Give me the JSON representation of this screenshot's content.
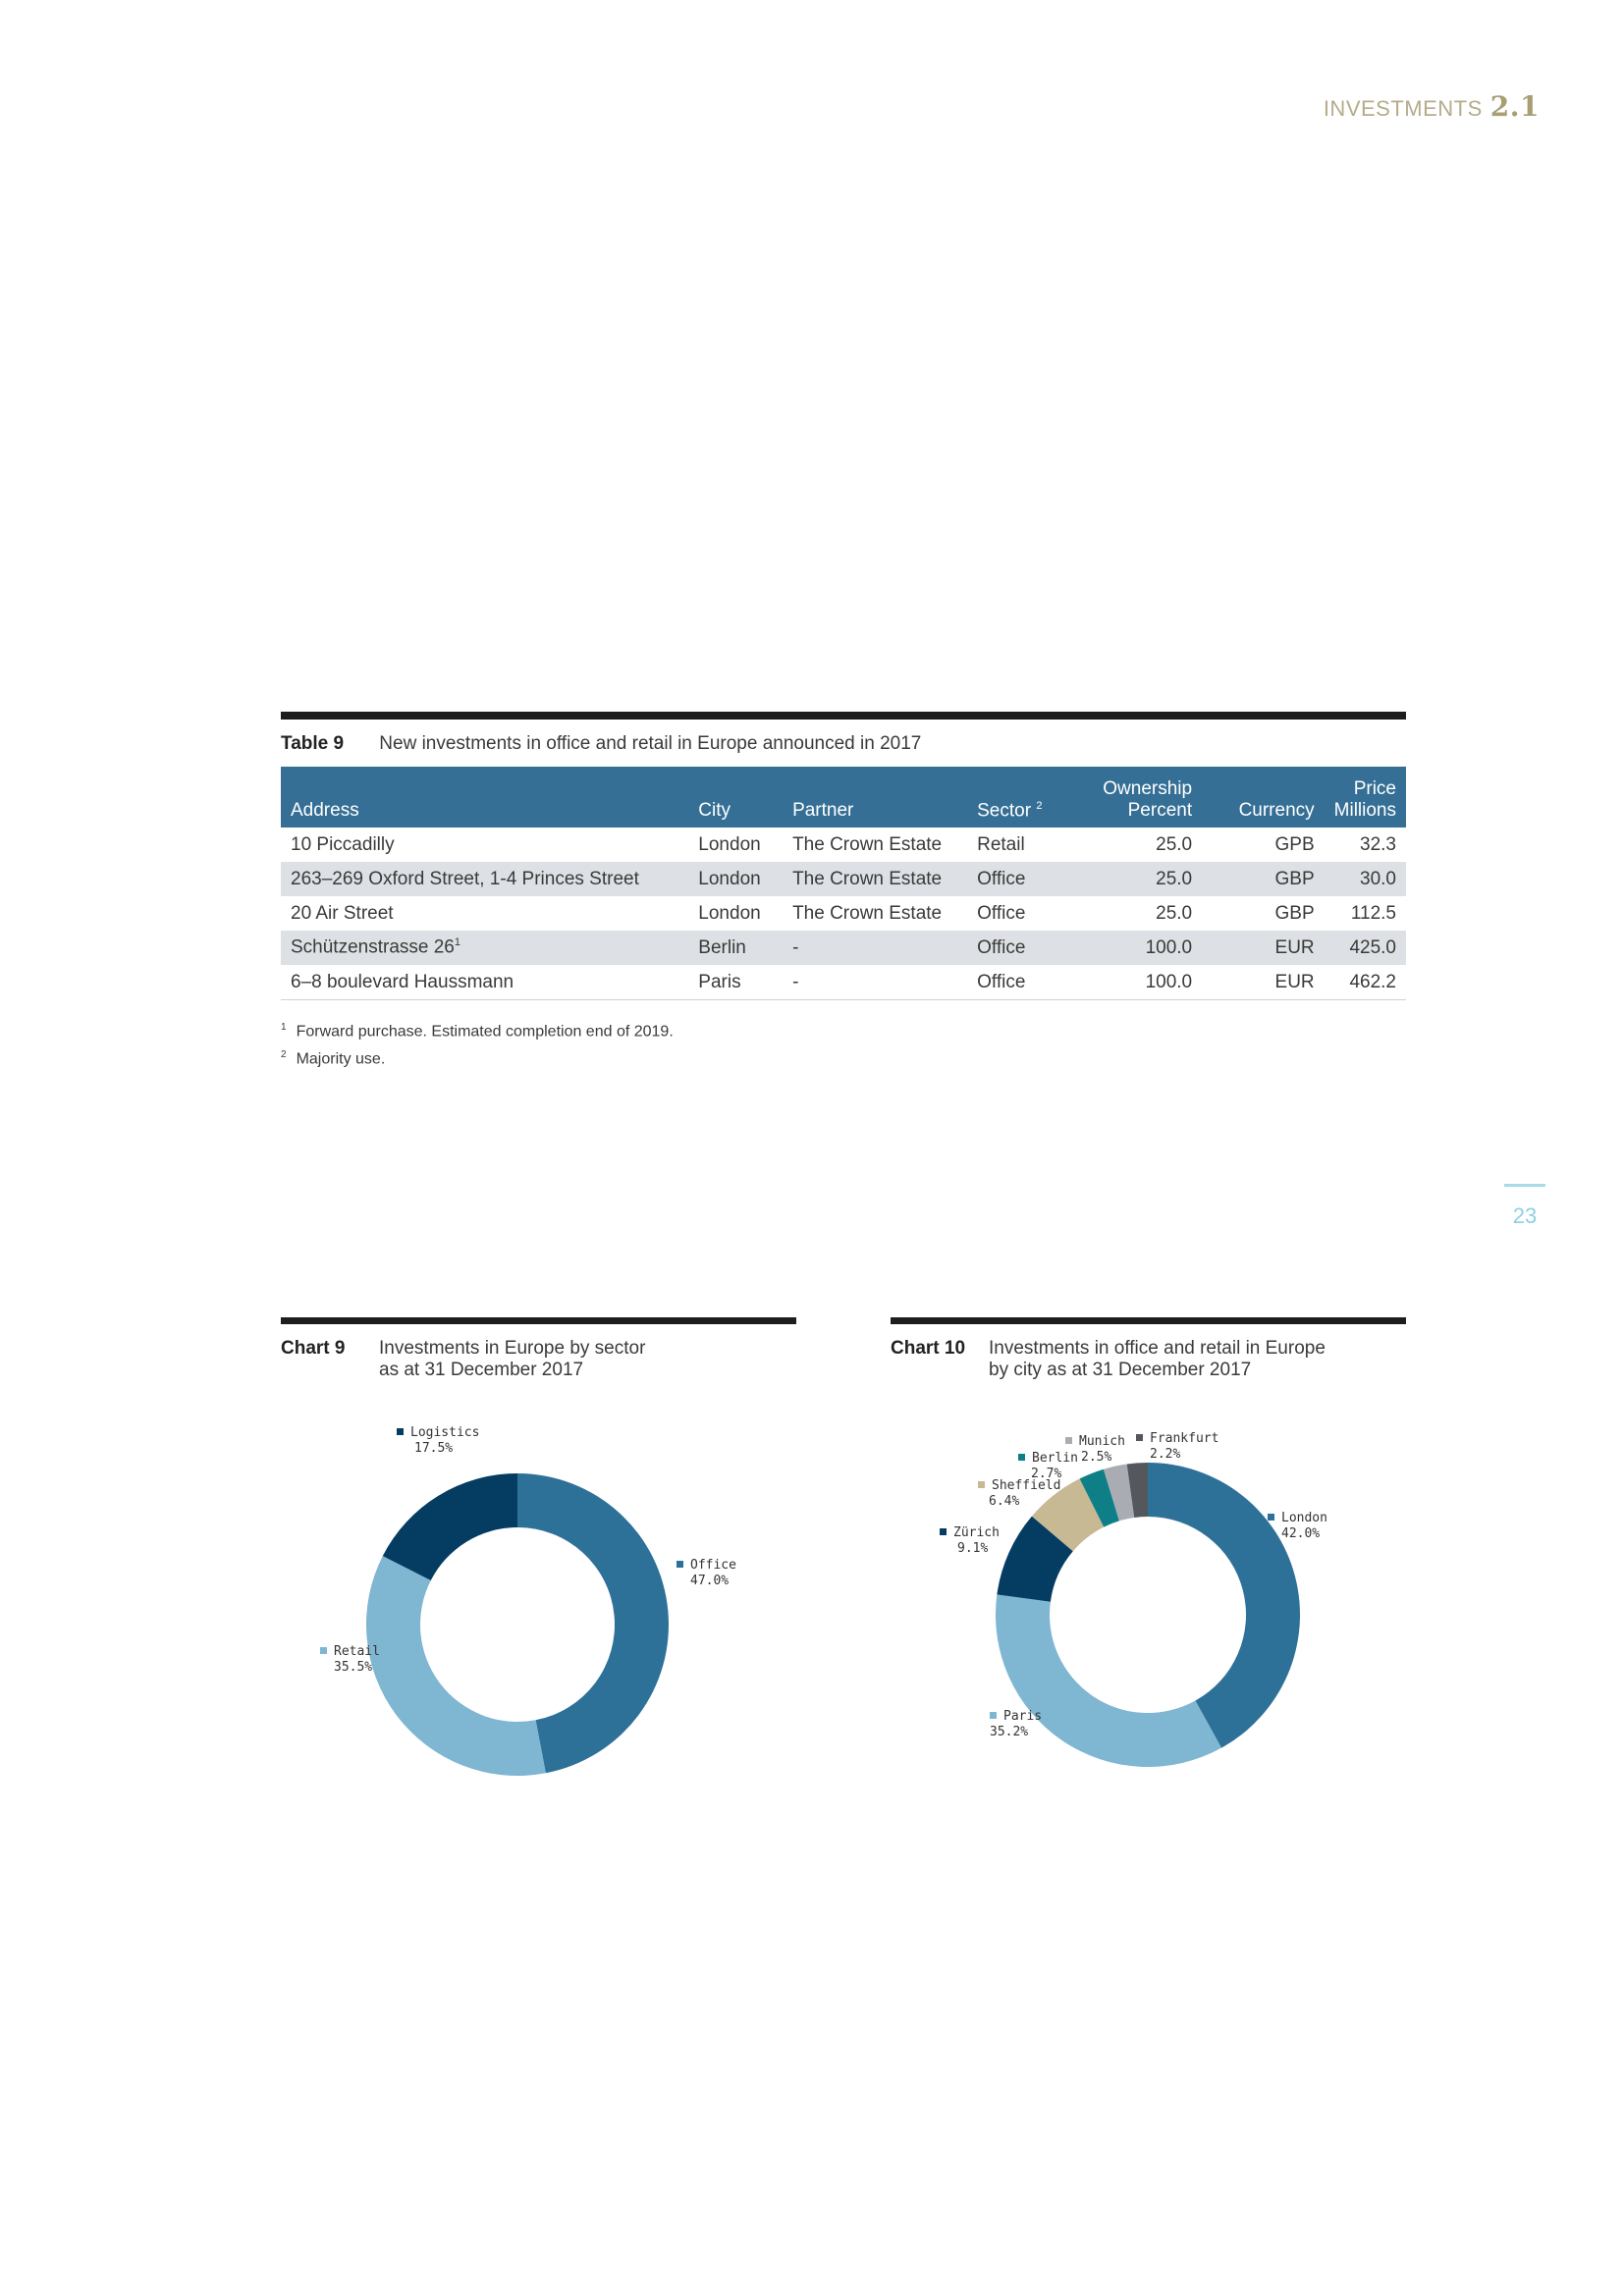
{
  "header": {
    "section": "INVESTMENTS",
    "number": "2.1"
  },
  "page_number": "23",
  "table": {
    "label": "Table 9",
    "title": "New investments in office and retail in Europe announced in 2017",
    "columns": {
      "address": "Address",
      "city": "City",
      "partner": "Partner",
      "sector": "Sector",
      "sector_note": "2",
      "ownership_1": "Ownership",
      "ownership_2": "Percent",
      "currency": "Currency",
      "price_1": "Price",
      "price_2": "Millions"
    },
    "rows": [
      {
        "address": "10 Piccadilly",
        "note": "",
        "city": "London",
        "partner": "The Crown Estate",
        "sector": "Retail",
        "ownership": "25.0",
        "currency": "GPB",
        "price": "32.3"
      },
      {
        "address": "263–269 Oxford Street, 1-4 Princes Street",
        "note": "",
        "city": "London",
        "partner": "The Crown Estate",
        "sector": "Office",
        "ownership": "25.0",
        "currency": "GBP",
        "price": "30.0"
      },
      {
        "address": "20 Air Street",
        "note": "",
        "city": "London",
        "partner": "The Crown Estate",
        "sector": "Office",
        "ownership": "25.0",
        "currency": "GBP",
        "price": "112.5"
      },
      {
        "address": "Schützenstrasse 26",
        "note": "1",
        "city": "Berlin",
        "partner": "-",
        "sector": "Office",
        "ownership": "100.0",
        "currency": "EUR",
        "price": "425.0"
      },
      {
        "address": "6–8 boulevard Haussmann",
        "note": "",
        "city": "Paris",
        "partner": "-",
        "sector": "Office",
        "ownership": "100.0",
        "currency": "EUR",
        "price": "462.2"
      }
    ],
    "footnotes": [
      {
        "mark": "1",
        "text": "Forward purchase. Estimated completion end of 2019."
      },
      {
        "mark": "2",
        "text": "Majority use."
      }
    ]
  },
  "chart_data": [
    {
      "type": "pie",
      "label": "Chart 9",
      "title": "Investments in Europe by sector",
      "subtitle": "as at 31 December 2017",
      "slices": [
        {
          "name": "Office",
          "value": 47.0,
          "display": "47.0%",
          "color": "#2d7199"
        },
        {
          "name": "Retail",
          "value": 35.5,
          "display": "35.5%",
          "color": "#7fb6d2"
        },
        {
          "name": "Logistics",
          "value": 17.5,
          "display": "17.5%",
          "color": "#053c62"
        }
      ]
    },
    {
      "type": "pie",
      "label": "Chart 10",
      "title": "Investments in office and retail in Europe",
      "subtitle": "by city as at 31 December 2017",
      "slices": [
        {
          "name": "London",
          "value": 42.0,
          "display": "42.0%",
          "color": "#2d7199"
        },
        {
          "name": "Paris",
          "value": 35.2,
          "display": "35.2%",
          "color": "#7fb6d2"
        },
        {
          "name": "Zürich",
          "value": 9.1,
          "display": "9.1%",
          "color": "#053c62"
        },
        {
          "name": "Sheffield",
          "value": 6.4,
          "display": "6.4%",
          "color": "#c6b994"
        },
        {
          "name": "Berlin",
          "value": 2.7,
          "display": "2.7%",
          "color": "#0e7f86"
        },
        {
          "name": "Munich",
          "value": 2.5,
          "display": "2.5%",
          "color": "#a9adb3"
        },
        {
          "name": "Frankfurt",
          "value": 2.2,
          "display": "2.2%",
          "color": "#54575c"
        }
      ]
    }
  ]
}
